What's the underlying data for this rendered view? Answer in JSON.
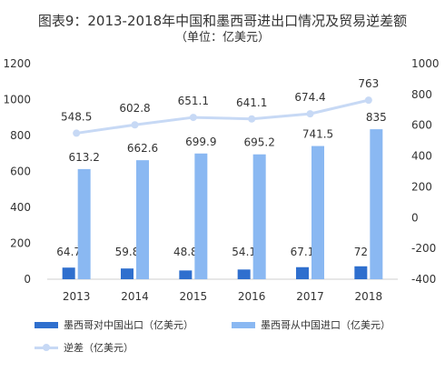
{
  "title": "图表9：2013-2018年中国和墨西哥进出口情况及贸易逆差额",
  "subtitle": "（单位：亿美元）",
  "colors": {
    "export": "#2f6fce",
    "import": "#8ab8f2",
    "deficit": "#c7d9f5",
    "axis": "#cfcfcf",
    "text": "#333333"
  },
  "chart_data": {
    "type": "bar",
    "categories": [
      "2013",
      "2014",
      "2015",
      "2016",
      "2017",
      "2018"
    ],
    "series": [
      {
        "name": "墨西哥对中国出口（亿美元）",
        "type": "bar",
        "axis": "left",
        "values": [
          64.7,
          59.8,
          48.8,
          54.1,
          67.1,
          72
        ]
      },
      {
        "name": "墨西哥从中国进口（亿美元）",
        "type": "bar",
        "axis": "left",
        "values": [
          613.2,
          662.6,
          699.9,
          695.2,
          741.5,
          835
        ]
      },
      {
        "name": "逆差（亿美元）",
        "type": "line",
        "axis": "right",
        "values": [
          548.5,
          602.8,
          651.1,
          641.1,
          674.4,
          763
        ]
      }
    ],
    "value_labels": {
      "export": [
        "64.7",
        "59.8",
        "48.8",
        "54.1",
        "67.1",
        "72"
      ],
      "import": [
        "613.2",
        "662.6",
        "699.9",
        "695.2",
        "741.5",
        "835"
      ],
      "deficit": [
        "548.5",
        "602.8",
        "651.1",
        "641.1",
        "674.4",
        "763"
      ]
    },
    "y_left": {
      "min": 0,
      "max": 1200,
      "ticks": [
        0,
        200,
        400,
        600,
        800,
        1000,
        1200
      ]
    },
    "y_right": {
      "min": -400,
      "max": 1000,
      "ticks": [
        -400,
        -200,
        0,
        200,
        400,
        600,
        800,
        1000
      ]
    },
    "grid": false,
    "legend_position": "bottom"
  }
}
